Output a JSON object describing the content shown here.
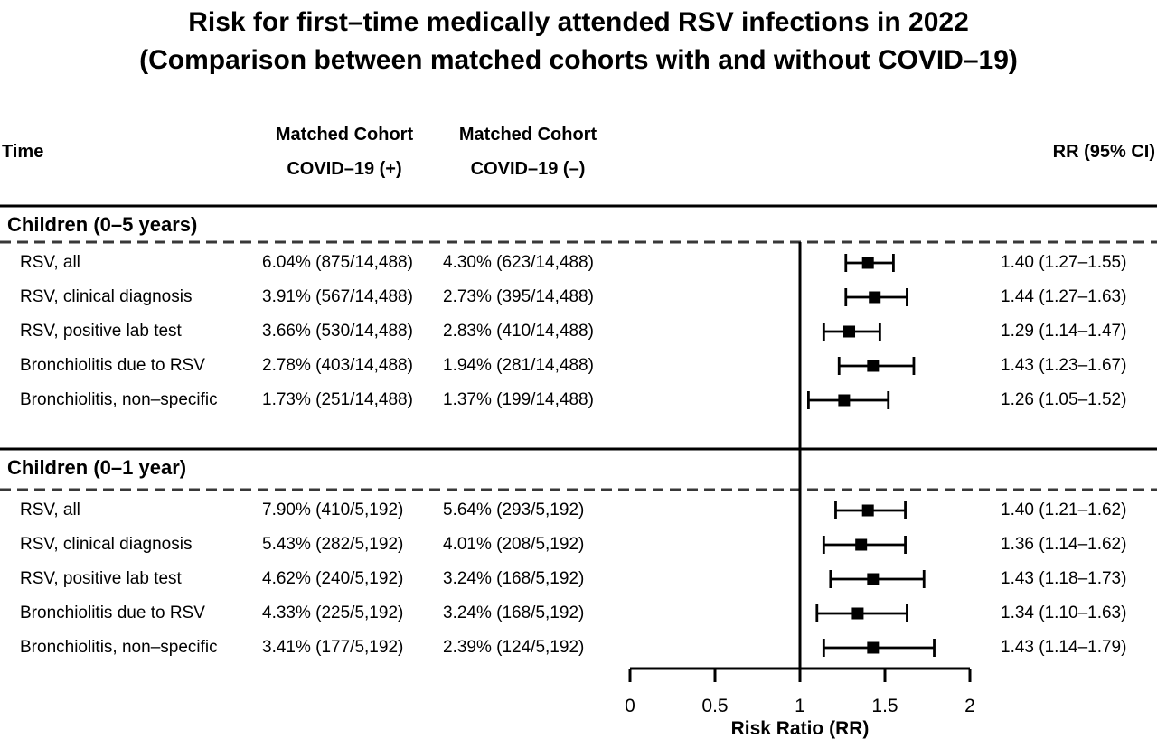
{
  "chart_data": {
    "type": "forest",
    "title": "Risk for first–time medically attended RSV infections in 2022",
    "subtitle": "(Comparison between matched cohorts with and without COVID–19)",
    "xlabel": "Risk Ratio (RR)",
    "xlim": [
      0,
      2
    ],
    "xticks": [
      0,
      0.5,
      1,
      1.5,
      2
    ],
    "xtick_labels": [
      "0",
      "0.5",
      "1",
      "1.5",
      "2"
    ],
    "reference_line_x": 1,
    "grid": false,
    "marker": "black-square-with-capped-ci",
    "columns": {
      "time": "Time",
      "cohort_positive": [
        "Matched Cohort",
        "COVID–19 (+)"
      ],
      "cohort_negative": [
        "Matched Cohort",
        "COVID–19 (–)"
      ],
      "rr": "RR (95% CI)"
    },
    "groups": [
      {
        "name": "Children (0–5 years)",
        "rows": [
          {
            "label": "RSV, all",
            "covid_pos": "6.04% (875/14,488)",
            "covid_neg": "4.30% (623/14,488)",
            "rr": 1.4,
            "ci_low": 1.27,
            "ci_high": 1.55,
            "rr_ci_text": "1.40 (1.27–1.55)"
          },
          {
            "label": "RSV, clinical diagnosis",
            "covid_pos": "3.91% (567/14,488)",
            "covid_neg": "2.73% (395/14,488)",
            "rr": 1.44,
            "ci_low": 1.27,
            "ci_high": 1.63,
            "rr_ci_text": "1.44 (1.27–1.63)"
          },
          {
            "label": "RSV, positive lab test",
            "covid_pos": "3.66% (530/14,488)",
            "covid_neg": "2.83% (410/14,488)",
            "rr": 1.29,
            "ci_low": 1.14,
            "ci_high": 1.47,
            "rr_ci_text": "1.29 (1.14–1.47)"
          },
          {
            "label": "Bronchiolitis due to RSV",
            "covid_pos": "2.78% (403/14,488)",
            "covid_neg": "1.94% (281/14,488)",
            "rr": 1.43,
            "ci_low": 1.23,
            "ci_high": 1.67,
            "rr_ci_text": "1.43 (1.23–1.67)"
          },
          {
            "label": "Bronchiolitis, non–specific",
            "covid_pos": "1.73% (251/14,488)",
            "covid_neg": "1.37% (199/14,488)",
            "rr": 1.26,
            "ci_low": 1.05,
            "ci_high": 1.52,
            "rr_ci_text": "1.26 (1.05–1.52)"
          }
        ]
      },
      {
        "name": "Children (0–1 year)",
        "rows": [
          {
            "label": "RSV, all",
            "covid_pos": "7.90% (410/5,192)",
            "covid_neg": "5.64% (293/5,192)",
            "rr": 1.4,
            "ci_low": 1.21,
            "ci_high": 1.62,
            "rr_ci_text": "1.40 (1.21–1.62)"
          },
          {
            "label": "RSV, clinical diagnosis",
            "covid_pos": "5.43% (282/5,192)",
            "covid_neg": "4.01% (208/5,192)",
            "rr": 1.36,
            "ci_low": 1.14,
            "ci_high": 1.62,
            "rr_ci_text": "1.36 (1.14–1.62)"
          },
          {
            "label": "RSV, positive lab test",
            "covid_pos": "4.62% (240/5,192)",
            "covid_neg": "3.24% (168/5,192)",
            "rr": 1.43,
            "ci_low": 1.18,
            "ci_high": 1.73,
            "rr_ci_text": "1.43 (1.18–1.73)"
          },
          {
            "label": "Bronchiolitis due to RSV",
            "covid_pos": "4.33% (225/5,192)",
            "covid_neg": "3.24% (168/5,192)",
            "rr": 1.34,
            "ci_low": 1.1,
            "ci_high": 1.63,
            "rr_ci_text": "1.34 (1.10–1.63)"
          },
          {
            "label": "Bronchiolitis, non–specific",
            "covid_pos": "3.41% (177/5,192)",
            "covid_neg": "2.39% (124/5,192)",
            "rr": 1.43,
            "ci_low": 1.14,
            "ci_high": 1.79,
            "rr_ci_text": "1.43 (1.14–1.79)"
          }
        ]
      }
    ]
  }
}
